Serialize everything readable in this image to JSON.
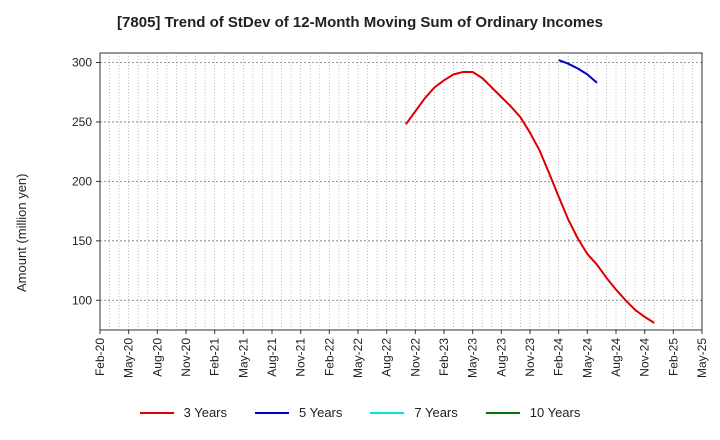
{
  "chart_data": {
    "type": "line",
    "title": "[7805]  Trend of StDev of 12-Month Moving Sum of Ordinary Incomes",
    "ylabel": "Amount (million yen)",
    "xlabel": "",
    "ylim": [
      75,
      308
    ],
    "yticks": [
      100,
      150,
      200,
      250,
      300
    ],
    "xticks": [
      "Feb-20",
      "May-20",
      "Aug-20",
      "Nov-20",
      "Feb-21",
      "May-21",
      "Aug-21",
      "Nov-21",
      "Feb-22",
      "May-22",
      "Aug-22",
      "Nov-22",
      "Feb-23",
      "May-23",
      "Aug-23",
      "Nov-23",
      "Feb-24",
      "May-24",
      "Aug-24",
      "Nov-24",
      "Feb-25",
      "May-25"
    ],
    "x_start": "Feb-20",
    "grid": true,
    "legend_position": "bottom",
    "series": [
      {
        "name": "3 Years",
        "color": "#dd0000",
        "points": [
          {
            "x": "Oct-22",
            "y": 248
          },
          {
            "x": "Nov-22",
            "y": 259
          },
          {
            "x": "Dec-22",
            "y": 270
          },
          {
            "x": "Jan-23",
            "y": 279
          },
          {
            "x": "Feb-23",
            "y": 285
          },
          {
            "x": "Mar-23",
            "y": 290
          },
          {
            "x": "Apr-23",
            "y": 292
          },
          {
            "x": "May-23",
            "y": 292
          },
          {
            "x": "Jun-23",
            "y": 287
          },
          {
            "x": "Jul-23",
            "y": 279
          },
          {
            "x": "Aug-23",
            "y": 271
          },
          {
            "x": "Sep-23",
            "y": 263
          },
          {
            "x": "Oct-23",
            "y": 254
          },
          {
            "x": "Nov-23",
            "y": 241
          },
          {
            "x": "Dec-23",
            "y": 226
          },
          {
            "x": "Jan-24",
            "y": 207
          },
          {
            "x": "Feb-24",
            "y": 187
          },
          {
            "x": "Mar-24",
            "y": 168
          },
          {
            "x": "Apr-24",
            "y": 152
          },
          {
            "x": "May-24",
            "y": 139
          },
          {
            "x": "Jun-24",
            "y": 130
          },
          {
            "x": "Jul-24",
            "y": 119
          },
          {
            "x": "Aug-24",
            "y": 109
          },
          {
            "x": "Sep-24",
            "y": 100
          },
          {
            "x": "Oct-24",
            "y": 92
          },
          {
            "x": "Nov-24",
            "y": 86
          },
          {
            "x": "Dec-24",
            "y": 81
          }
        ]
      },
      {
        "name": "5 Years",
        "color": "#0000cc",
        "points": [
          {
            "x": "Feb-24",
            "y": 302
          },
          {
            "x": "Mar-24",
            "y": 299
          },
          {
            "x": "Apr-24",
            "y": 295
          },
          {
            "x": "May-24",
            "y": 290
          },
          {
            "x": "Jun-24",
            "y": 283
          }
        ]
      },
      {
        "name": "7 Years",
        "color": "#00e5e5",
        "points": []
      },
      {
        "name": "10 Years",
        "color": "#007700",
        "points": []
      }
    ]
  }
}
